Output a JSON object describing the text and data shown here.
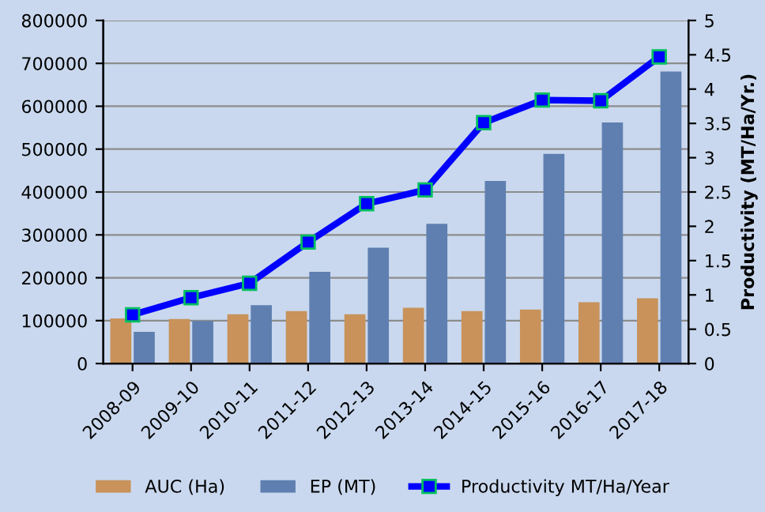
{
  "chart_data": {
    "type": "bar",
    "y2label": "Productivity (MT/Ha/Yr.)",
    "categories": [
      "2008-09",
      "2009-10",
      "2010-11",
      "2011-12",
      "2012-13",
      "2013-14",
      "2014-15",
      "2015-16",
      "2016-17",
      "2017-18"
    ],
    "series": [
      {
        "name": "AUC (Ha)",
        "color": "#c8925a",
        "values": [
          105000,
          104000,
          115000,
          122000,
          115000,
          130000,
          122000,
          126000,
          143000,
          152000
        ]
      },
      {
        "name": "EP (MT)",
        "color": "#5f7fb0",
        "values": [
          74000,
          99000,
          136000,
          214000,
          270000,
          326000,
          426000,
          489000,
          562000,
          681000
        ]
      },
      {
        "name": "Productivity MT/Ha/Year",
        "type": "line",
        "axis": "y2",
        "color": "#0000ff",
        "marker": "square",
        "values": [
          0.71,
          0.96,
          1.17,
          1.77,
          2.33,
          2.53,
          3.51,
          3.84,
          3.83,
          4.47
        ]
      }
    ],
    "ylim": [
      0,
      800000
    ],
    "yticks": [
      0,
      100000,
      200000,
      300000,
      400000,
      500000,
      600000,
      700000,
      800000
    ],
    "y2lim": [
      0,
      5
    ],
    "y2ticks": [
      0,
      {
        "value": 0.5,
        "label": "0.5"
      },
      1,
      {
        "value": 1.5,
        "label": "1.5"
      },
      2,
      {
        "value": 2.5,
        "label": "2.5"
      },
      3,
      {
        "value": 3.5,
        "label": "3.5"
      },
      4,
      {
        "value": 4.5,
        "label": "4.5"
      },
      5
    ],
    "grid": "y",
    "legend": "bottom"
  }
}
